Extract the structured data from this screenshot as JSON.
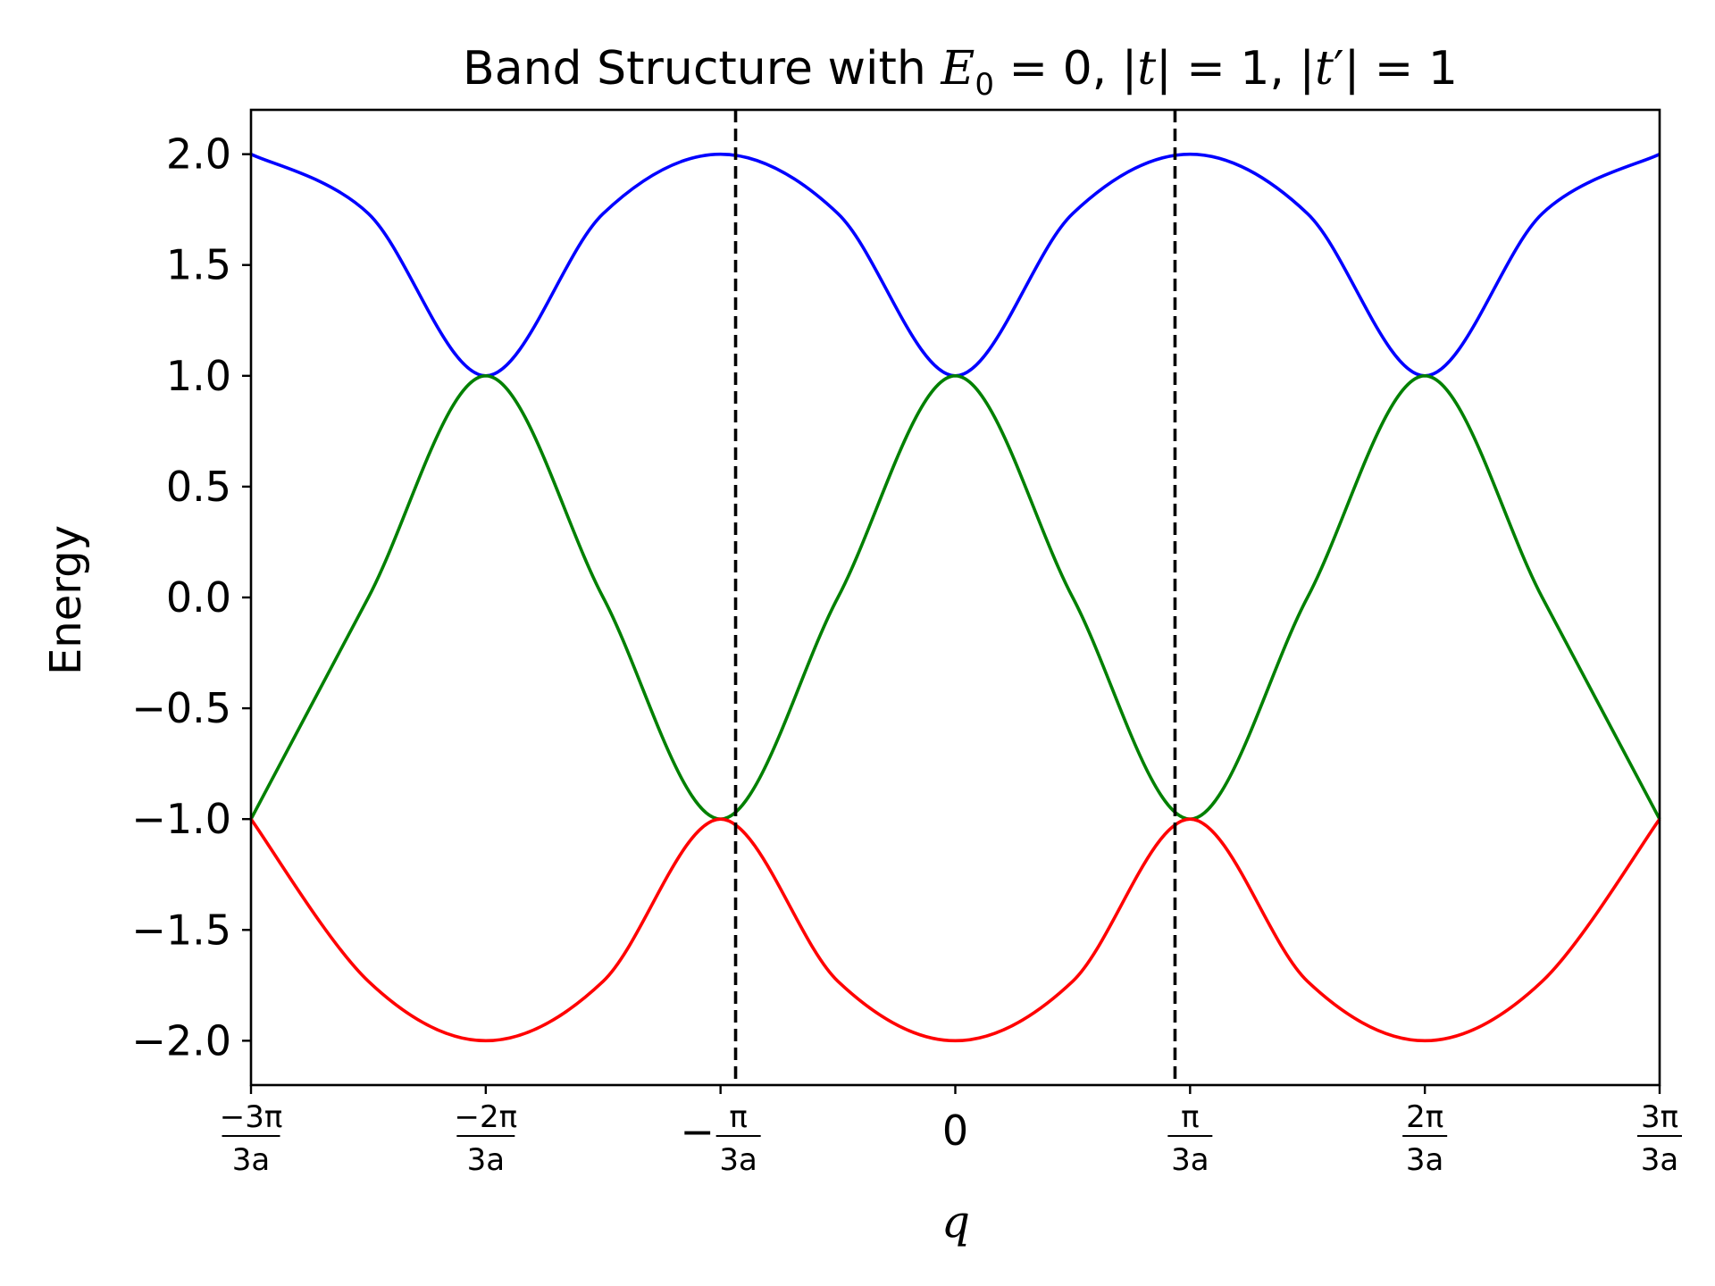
{
  "chart_data": {
    "type": "line",
    "title_parts": [
      "Band Structure with ",
      "E",
      "0",
      " = 0, |",
      "t",
      "| = 1, |",
      "t",
      "′",
      "| = 1"
    ],
    "xlabel": "q",
    "ylabel": "Energy",
    "xlim": [
      -3.14159265,
      3.14159265
    ],
    "ylim": [
      -2.2,
      2.2
    ],
    "x_unit": "π/(3a)",
    "yticks": [
      {
        "value": 2.0,
        "label": "2.0"
      },
      {
        "value": 1.5,
        "label": "1.5"
      },
      {
        "value": 1.0,
        "label": "1.0"
      },
      {
        "value": 0.5,
        "label": "0.5"
      },
      {
        "value": 0.0,
        "label": "0.0"
      },
      {
        "value": -0.5,
        "label": "−0.5"
      },
      {
        "value": -1.0,
        "label": "−1.0"
      },
      {
        "value": -1.5,
        "label": "−1.5"
      },
      {
        "value": -2.0,
        "label": "−2.0"
      }
    ],
    "xticks": [
      {
        "value": -3.14159265,
        "num": "−3π",
        "den": "3a",
        "kind": "frac"
      },
      {
        "value": -2.0943951,
        "num": "−2π",
        "den": "3a",
        "kind": "frac"
      },
      {
        "value": -1.04719755,
        "num": "π",
        "den": "3a",
        "kind": "negfrac"
      },
      {
        "value": 0,
        "label": "0",
        "kind": "plain"
      },
      {
        "value": 1.04719755,
        "num": "π",
        "den": "3a",
        "kind": "frac"
      },
      {
        "value": 2.0943951,
        "num": "2π",
        "den": "3a",
        "kind": "frac"
      },
      {
        "value": 3.14159265,
        "num": "3π",
        "den": "3a",
        "kind": "frac"
      }
    ],
    "series": [
      {
        "color": "#0000ff",
        "x": [
          -3.1416,
          -2.618,
          -2.0944,
          -1.5708,
          -1.0472,
          -0.5236,
          0.0,
          0.5236,
          1.0472,
          1.5708,
          2.0944,
          2.618,
          3.1416
        ],
        "y": [
          2.0,
          1.732,
          1.0,
          1.732,
          2.0,
          1.732,
          1.0,
          1.732,
          2.0,
          1.732,
          1.0,
          1.732,
          2.0
        ]
      },
      {
        "color": "#008000",
        "x": [
          -3.1416,
          -2.618,
          -2.0944,
          -1.5708,
          -1.0472,
          -0.5236,
          0.0,
          0.5236,
          1.0472,
          1.5708,
          2.0944,
          2.618,
          3.1416
        ],
        "y": [
          -1.0,
          0.0,
          1.0,
          0.0,
          -1.0,
          0.0,
          1.0,
          0.0,
          -1.0,
          0.0,
          1.0,
          0.0,
          -1.0
        ]
      },
      {
        "color": "#ff0000",
        "x": [
          -3.1416,
          -2.618,
          -2.0944,
          -1.5708,
          -1.0472,
          -0.5236,
          0.0,
          0.5236,
          1.0472,
          1.5708,
          2.0944,
          2.618,
          3.1416
        ],
        "y": [
          -1.0,
          -1.732,
          -2.0,
          -1.732,
          -1.0,
          -1.732,
          -2.0,
          -1.732,
          -1.0,
          -1.732,
          -2.0,
          -1.732,
          -1.0
        ]
      }
    ],
    "vlines": [
      {
        "x": -0.98,
        "color": "#000000",
        "style": "dashed"
      },
      {
        "x": 0.98,
        "color": "#000000",
        "style": "dashed"
      }
    ],
    "grid": false,
    "legend": "none"
  }
}
